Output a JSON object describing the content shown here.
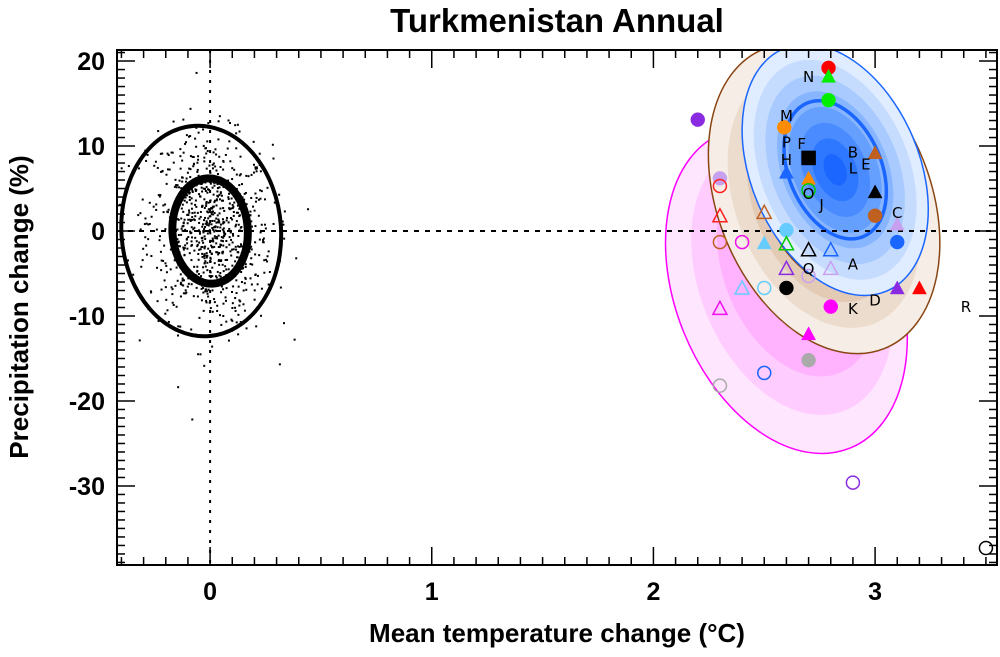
{
  "chart_data": {
    "type": "scatter",
    "title": "Turkmenistan Annual",
    "xlabel": "Mean temperature change (°C)",
    "ylabel": "Precipitation change (%)",
    "xlim": [
      -0.42,
      3.55
    ],
    "ylim": [
      -39.3,
      21.3
    ],
    "xticks": [
      0,
      1,
      2,
      3
    ],
    "xtick_labels": [
      "0",
      "1",
      "2",
      "3"
    ],
    "yticks": [
      20,
      10,
      0,
      -10,
      -20,
      -30
    ],
    "ytick_labels": [
      "20",
      "10",
      "0",
      "-10",
      "-20",
      "-30"
    ],
    "x_minor_step": 0.1,
    "y_minor_step": 1,
    "grid": false,
    "reference_lines": [
      {
        "orientation": "vertical",
        "value": 0,
        "style": "dotted"
      },
      {
        "orientation": "horizontal",
        "value": 0,
        "style": "dotted"
      }
    ],
    "natural_variability": {
      "description": "scatter of internal variability samples",
      "center": [
        0,
        0
      ],
      "ellipses": [
        {
          "name": "inner",
          "cx": 0,
          "cy": 0,
          "rx": 0.17,
          "ry": 6.2,
          "tilt_deg": -3
        },
        {
          "name": "outer",
          "cx": -0.04,
          "cy": 0,
          "rx": 0.36,
          "ry": 12.4,
          "tilt_deg": -4
        }
      ],
      "n_points": 900,
      "sd_x": 0.14,
      "sd_y": 5.6
    },
    "distributions": [
      {
        "name": "magenta",
        "color": "#ff00ff",
        "cx": 2.6,
        "cy": -7,
        "rx": 0.5,
        "ry": 20,
        "tilt_deg": -22
      },
      {
        "name": "brown",
        "color": "#8b4513",
        "cx": 2.77,
        "cy": 3.8,
        "rx": 0.48,
        "ry": 19,
        "tilt_deg": -22
      },
      {
        "name": "blue",
        "color": "#1a66ff",
        "cx": 2.82,
        "cy": 7.2,
        "rx": 0.38,
        "ry": 15.5,
        "tilt_deg": -23
      }
    ],
    "series": [
      {
        "name": "red-filled-circle",
        "marker": "circle",
        "filled": true,
        "color": "#ff0000",
        "x": 2.79,
        "y": 19.2
      },
      {
        "name": "green-filled-triangle",
        "marker": "triangle",
        "filled": true,
        "color": "#00ee00",
        "x": 2.79,
        "y": 18.2
      },
      {
        "name": "green-filled-circle",
        "marker": "circle",
        "filled": true,
        "color": "#00ee00",
        "x": 2.79,
        "y": 15.4
      },
      {
        "name": "purple-filled-circle",
        "marker": "circle",
        "filled": true,
        "color": "#8a2be2",
        "x": 2.2,
        "y": 13.1
      },
      {
        "name": "orange-filled-circle",
        "marker": "circle",
        "filled": true,
        "color": "#ff8c00",
        "x": 2.59,
        "y": 12.2
      },
      {
        "name": "black-filled-square",
        "marker": "square",
        "filled": true,
        "color": "#000000",
        "x": 2.7,
        "y": 8.6
      },
      {
        "name": "brown-filled-triangle",
        "marker": "triangle",
        "filled": true,
        "color": "#c06020",
        "x": 3.0,
        "y": 9.2
      },
      {
        "name": "blue-filled-triangle",
        "marker": "triangle",
        "filled": true,
        "color": "#1a66ff",
        "x": 2.6,
        "y": 6.9
      },
      {
        "name": "orange-filled-triangle",
        "marker": "triangle",
        "filled": true,
        "color": "#ff8c00",
        "x": 2.7,
        "y": 6.2
      },
      {
        "name": "green-open-circle",
        "marker": "circle",
        "filled": false,
        "color": "#00cc00",
        "x": 2.7,
        "y": 4.8
      },
      {
        "name": "lilac-filled-circle",
        "marker": "circle",
        "filled": true,
        "color": "#c8a0f0",
        "x": 2.3,
        "y": 6.2
      },
      {
        "name": "red-open-circle",
        "marker": "circle",
        "filled": false,
        "color": "#ff2020",
        "x": 2.3,
        "y": 5.3
      },
      {
        "name": "black-filled-triangle",
        "marker": "triangle",
        "filled": true,
        "color": "#000000",
        "x": 3.0,
        "y": 4.6
      },
      {
        "name": "brown-filled-circle",
        "marker": "circle",
        "filled": true,
        "color": "#c06020",
        "x": 3.0,
        "y": 1.8
      },
      {
        "name": "lilac-filled-triangle",
        "marker": "triangle",
        "filled": true,
        "color": "#c8a0f0",
        "x": 3.1,
        "y": 0.8
      },
      {
        "name": "blue-filled-circle",
        "marker": "circle",
        "filled": true,
        "color": "#1a66ff",
        "x": 3.1,
        "y": -1.3
      },
      {
        "name": "red-open-triangle",
        "marker": "triangle",
        "filled": false,
        "color": "#ff2020",
        "x": 2.3,
        "y": 1.8
      },
      {
        "name": "brown-open-triangle",
        "marker": "triangle",
        "filled": false,
        "color": "#c06020",
        "x": 2.5,
        "y": 2.2
      },
      {
        "name": "lightblue-filled-circle",
        "marker": "circle",
        "filled": true,
        "color": "#66ccff",
        "x": 2.6,
        "y": 0.1
      },
      {
        "name": "brown-open-circle",
        "marker": "circle",
        "filled": false,
        "color": "#c06020",
        "x": 2.3,
        "y": -1.3
      },
      {
        "name": "magenta-open-circle",
        "marker": "circle",
        "filled": false,
        "color": "#ee10ee",
        "x": 2.4,
        "y": -1.3
      },
      {
        "name": "lightblue-filled-triangle",
        "marker": "triangle",
        "filled": true,
        "color": "#66ccff",
        "x": 2.5,
        "y": -1.4
      },
      {
        "name": "green-open-triangle",
        "marker": "triangle",
        "filled": false,
        "color": "#00cc00",
        "x": 2.6,
        "y": -1.5
      },
      {
        "name": "black-open-triangle",
        "marker": "triangle",
        "filled": false,
        "color": "#000000",
        "x": 2.7,
        "y": -2.2
      },
      {
        "name": "blue-open-triangle",
        "marker": "triangle",
        "filled": false,
        "color": "#1a66ff",
        "x": 2.8,
        "y": -2.2
      },
      {
        "name": "purple-open-triangle",
        "marker": "triangle",
        "filled": false,
        "color": "#8a2be2",
        "x": 2.6,
        "y": -4.4
      },
      {
        "name": "lilac-open-triangle",
        "marker": "triangle",
        "filled": false,
        "color": "#c8a0f0",
        "x": 2.8,
        "y": -4.4
      },
      {
        "name": "lilac-open-circle",
        "marker": "circle",
        "filled": false,
        "color": "#c8a0f0",
        "x": 2.7,
        "y": -5.3
      },
      {
        "name": "lightblue-open-triangle",
        "marker": "triangle",
        "filled": false,
        "color": "#66ccff",
        "x": 2.4,
        "y": -6.7
      },
      {
        "name": "lightblue-open-circle",
        "marker": "circle",
        "filled": false,
        "color": "#66ccff",
        "x": 2.5,
        "y": -6.7
      },
      {
        "name": "black-filled-circle",
        "marker": "circle",
        "filled": true,
        "color": "#000000",
        "x": 2.6,
        "y": -6.7
      },
      {
        "name": "purple-filled-triangle",
        "marker": "triangle",
        "filled": true,
        "color": "#8a2be2",
        "x": 3.1,
        "y": -6.7
      },
      {
        "name": "red-filled-triangle",
        "marker": "triangle",
        "filled": true,
        "color": "#ff0000",
        "x": 3.2,
        "y": -6.7
      },
      {
        "name": "magenta-filled-circle",
        "marker": "circle",
        "filled": true,
        "color": "#ff00ff",
        "x": 2.8,
        "y": -8.9
      },
      {
        "name": "magenta-open-triangle",
        "marker": "triangle",
        "filled": false,
        "color": "#ee10ee",
        "x": 2.3,
        "y": -9.1
      },
      {
        "name": "magenta-filled-triangle",
        "marker": "triangle",
        "filled": true,
        "color": "#ff00ff",
        "x": 2.7,
        "y": -12.1
      },
      {
        "name": "gray-filled-circle",
        "marker": "circle",
        "filled": true,
        "color": "#aaaaaa",
        "x": 2.7,
        "y": -15.2
      },
      {
        "name": "blue-open-circle",
        "marker": "circle",
        "filled": false,
        "color": "#1a66ff",
        "x": 2.5,
        "y": -16.7
      },
      {
        "name": "gray-open-circle",
        "marker": "circle",
        "filled": false,
        "color": "#aaaaaa",
        "x": 2.3,
        "y": -18.2
      },
      {
        "name": "purple-open-circle",
        "marker": "circle",
        "filled": false,
        "color": "#8a2be2",
        "x": 2.9,
        "y": -29.6
      },
      {
        "name": "black-open-circle",
        "marker": "circle",
        "filled": false,
        "color": "#000000",
        "x": 3.5,
        "y": -37.3
      }
    ],
    "annotations": [
      {
        "text": "N",
        "x": 2.7,
        "y": 18.2
      },
      {
        "text": "M",
        "x": 2.6,
        "y": 13.6
      },
      {
        "text": "P",
        "x": 2.6,
        "y": 10.5
      },
      {
        "text": "F",
        "x": 2.61,
        "y": 10.3
      },
      {
        "text": "H",
        "x": 2.6,
        "y": 8.4
      },
      {
        "text": "B",
        "x": 2.9,
        "y": 9.3
      },
      {
        "text": "E",
        "x": 2.9,
        "y": 7.9
      },
      {
        "text": "L",
        "x": 2.9,
        "y": 7.4
      },
      {
        "text": "O",
        "x": 2.7,
        "y": 4.4
      },
      {
        "text": "J",
        "x": 2.7,
        "y": 3.1
      },
      {
        "text": "C",
        "x": 3.1,
        "y": 2.2
      },
      {
        "text": "A",
        "x": 2.9,
        "y": -3.9
      },
      {
        "text": "Q",
        "x": 2.7,
        "y": -4.4
      },
      {
        "text": "D",
        "x": 3.0,
        "y": -8.1
      },
      {
        "text": "K",
        "x": 2.9,
        "y": -9.1
      },
      {
        "text": "R",
        "x": 3.41,
        "y": -8.9
      }
    ]
  }
}
